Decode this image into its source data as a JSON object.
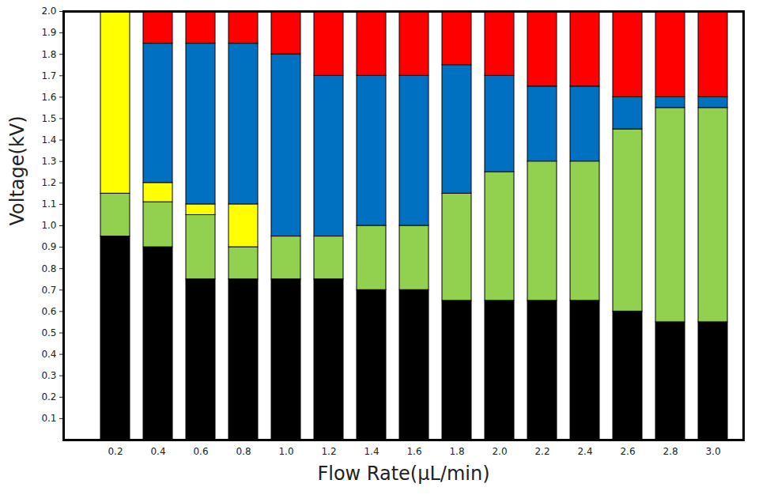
{
  "chart_data": {
    "type": "bar",
    "stacked": true,
    "x_label": "Flow Rate(µL/min)",
    "y_label": "Voltage(kV)",
    "categories": [
      "0.2",
      "0.4",
      "0.6",
      "0.8",
      "1.0",
      "1.2",
      "1.4",
      "1.6",
      "1.8",
      "2.0",
      "2.2",
      "2.4",
      "2.6",
      "2.8",
      "3.0"
    ],
    "series": [
      {
        "color": "#000000",
        "values": [
          0.95,
          0.9,
          0.75,
          0.75,
          0.75,
          0.75,
          0.7,
          0.7,
          0.65,
          0.65,
          0.65,
          0.65,
          0.6,
          0.55,
          0.55
        ]
      },
      {
        "color": "#92d050",
        "values": [
          0.2,
          0.21,
          0.3,
          0.15,
          0.2,
          0.2,
          0.3,
          0.3,
          0.5,
          0.6,
          0.65,
          0.65,
          0.85,
          1.0,
          1.0
        ]
      },
      {
        "color": "#ffff00",
        "values": [
          0.85,
          0.09,
          0.05,
          0.2,
          0,
          0,
          0,
          0,
          0,
          0,
          0,
          0,
          0,
          0,
          0
        ]
      },
      {
        "color": "#0070c0",
        "values": [
          0,
          0.65,
          0.75,
          0.75,
          0.85,
          0.75,
          0.7,
          0.7,
          0.6,
          0.45,
          0.35,
          0.35,
          0.15,
          0.05,
          0.05
        ]
      },
      {
        "color": "#ff0000",
        "values": [
          0,
          0.15,
          0.15,
          0.15,
          0.2,
          0.3,
          0.3,
          0.3,
          0.25,
          0.3,
          0.35,
          0.35,
          0.4,
          0.4,
          0.4
        ]
      }
    ],
    "ylim": [
      0,
      2
    ],
    "yticks": [
      0.1,
      0.2,
      0.3,
      0.4,
      0.5,
      0.6,
      0.7,
      0.8,
      0.9,
      {
        "value": 1,
        "label": "1.0"
      },
      1.1,
      1.2,
      1.3,
      1.4,
      1.5,
      1.6,
      1.7,
      1.8,
      1.9,
      {
        "value": 2,
        "label": "2.0"
      }
    ],
    "grid": false
  }
}
